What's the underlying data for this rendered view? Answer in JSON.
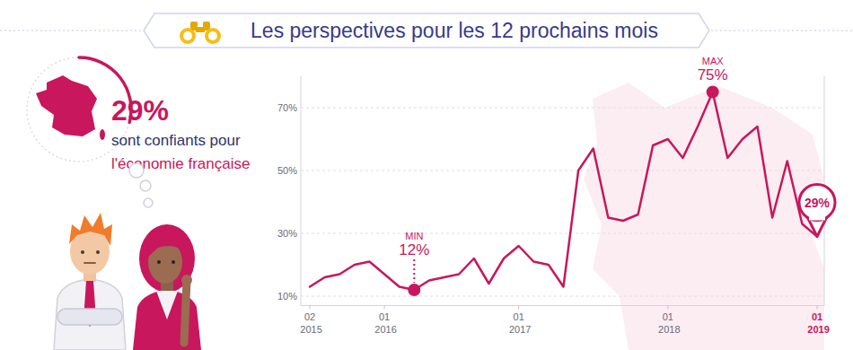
{
  "chart_data": {
    "type": "line",
    "title": "Les perspectives pour les 12 prochains mois",
    "categories": [
      "02 2015",
      null,
      null,
      null,
      null,
      "01 2016",
      null,
      null,
      null,
      null,
      null,
      null,
      null,
      null,
      "01 2017",
      null,
      null,
      null,
      null,
      null,
      null,
      null,
      null,
      null,
      "01 2018",
      null,
      null,
      null,
      null,
      null,
      null,
      null,
      null,
      null,
      "01 2019"
    ],
    "values": [
      13,
      16,
      17,
      20,
      21,
      17,
      13,
      12,
      15,
      16,
      17,
      22,
      14,
      22,
      26,
      21,
      20,
      13,
      50,
      57,
      35,
      34,
      36,
      58,
      60,
      54,
      64,
      75,
      54,
      60,
      64,
      35,
      53,
      33,
      29
    ],
    "color": "#c8175d",
    "ylim": [
      7,
      80
    ],
    "yticks": [
      {
        "value": 10,
        "label": "10%"
      },
      {
        "value": 30,
        "label": "30%"
      },
      {
        "value": 50,
        "label": "50%"
      },
      {
        "value": 70,
        "label": "70%"
      }
    ],
    "grid": true,
    "annotations": [
      {
        "text": "MIN",
        "label": "12%",
        "value": 12
      },
      {
        "text": "MAX",
        "label": "75%",
        "value": 75
      },
      {
        "label": "29%",
        "value": 29
      }
    ]
  },
  "headline": {
    "value": 29,
    "label": "29%",
    "text": "sont confiants pour",
    "highlight": "l'économie française"
  }
}
